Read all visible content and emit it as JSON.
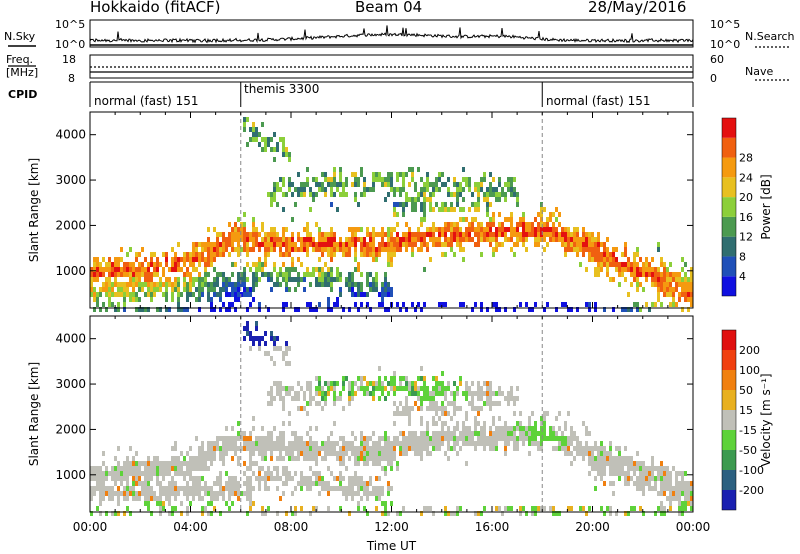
{
  "header": {
    "title": "Hokkaido (fitACF)",
    "beam": "Beam 04",
    "date": "28/May/2016"
  },
  "labels": {
    "nsky": "N.Sky",
    "nsky_top": "10^5",
    "nsky_bot": "10^0",
    "nsearch": "N.Search",
    "freq": "Freq.",
    "mhz": "[MHz]",
    "freq_top": "18",
    "freq_bot": "8",
    "nave_top": "60",
    "nave_bot": "0",
    "nave": "Nave",
    "cpid": "CPID"
  },
  "cpid_segments": [
    {
      "start_h": 0,
      "end_h": 6,
      "label": "normal (fast) 151"
    },
    {
      "start_h": 6,
      "end_h": 18,
      "label": "themis 3300"
    },
    {
      "start_h": 18,
      "end_h": 24,
      "label": "normal (fast) 151"
    }
  ],
  "chart_data": [
    {
      "type": "heatmap",
      "name": "power",
      "ylabel": "Slant Range [km]",
      "yticks": [
        1000,
        2000,
        3000,
        4000
      ],
      "ylim": [
        180,
        4500
      ],
      "xlim": [
        0,
        24
      ],
      "colorbar": {
        "label": "Power [dB]",
        "ticks": [
          4,
          8,
          12,
          16,
          20,
          24,
          28
        ],
        "colors": [
          "#1010e0",
          "#2050b8",
          "#306e70",
          "#4c9a50",
          "#8ccf3a",
          "#e8c020",
          "#f59a10",
          "#f06010",
          "#e41010"
        ]
      }
    },
    {
      "type": "heatmap",
      "name": "velocity",
      "ylabel": "Slant Range [km]",
      "yticks": [
        1000,
        2000,
        3000,
        4000
      ],
      "ylim": [
        180,
        4500
      ],
      "xlim": [
        0,
        24
      ],
      "xticks": [
        "00:00",
        "04:00",
        "08:00",
        "12:00",
        "16:00",
        "20:00",
        "00:00"
      ],
      "xlabel": "Time UT",
      "colorbar": {
        "label": "Velocity [m s⁻¹]",
        "ticks": [
          "200",
          "100",
          "50",
          "15",
          "-15",
          "-50",
          "-100",
          "-200"
        ],
        "colors": [
          "#1a20b0",
          "#2c6080",
          "#3c9a50",
          "#5ed23a",
          "#c0c0b8",
          "#e8b020",
          "#f08010",
          "#f04010",
          "#e01010"
        ]
      }
    }
  ]
}
